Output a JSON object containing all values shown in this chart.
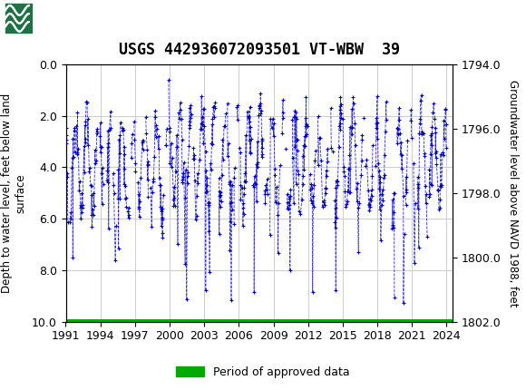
{
  "title": "USGS 442936072093501 VT-WBW  39",
  "ylabel_left": "Depth to water level, feet below land\nsurface",
  "ylabel_right": "Groundwater level above NAVD 1988, feet",
  "xlim": [
    1991.0,
    2024.5
  ],
  "ylim_left": [
    0.0,
    10.0
  ],
  "ylim_right_top": 1802.0,
  "ylim_right_bottom": 1794.0,
  "yticks_left": [
    0.0,
    2.0,
    4.0,
    6.0,
    8.0,
    10.0
  ],
  "yticks_right": [
    1802.0,
    1800.0,
    1798.0,
    1796.0,
    1794.0
  ],
  "ytick_right_labels": [
    "1802.0",
    "1800.0",
    "1798.0",
    "1796.0",
    "1794.0"
  ],
  "xticks": [
    1991,
    1994,
    1997,
    2000,
    2003,
    2006,
    2009,
    2012,
    2015,
    2018,
    2021,
    2024
  ],
  "header_color": "#1e7145",
  "data_color": "#0000cc",
  "approved_color": "#00aa00",
  "legend_label": "Period of approved data",
  "background_color": "#ffffff",
  "plot_bg_color": "#ffffff",
  "grid_color": "#cccccc",
  "title_fontsize": 12,
  "axis_label_fontsize": 8.5,
  "tick_fontsize": 9,
  "seed": 42,
  "n_years_start": 1991,
  "n_years_end": 2024
}
